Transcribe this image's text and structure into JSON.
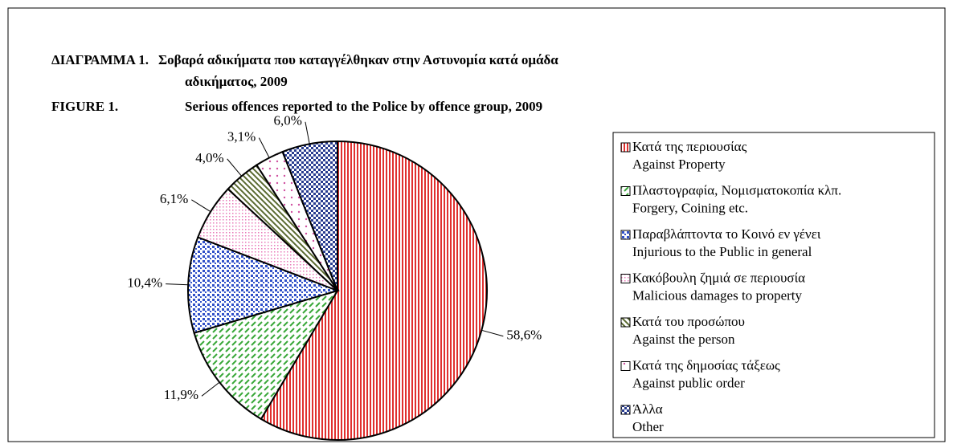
{
  "chart_data": {
    "type": "pie",
    "title_gr": [
      "ΔΙΑΓΡΑΜΜΑ 1.",
      "Σοβαρά αδικήματα που καταγγέλθηκαν στην Αστυνομία κατά ομάδα",
      "αδικήματος, 2009"
    ],
    "figure_label": "FIGURE 1.",
    "title_en": "Serious offences reported to the Police by offence group, 2009",
    "categories": [
      "Κατά της περιουσίας",
      "Πλαστογραφία, Νομισματοκοπία κλπ.",
      "Παραβλάπτοντα το Κοινό εν γένει",
      "Κακόβουλη ζημιά σε περιουσία",
      "Κατά του προσώπου",
      "Κατά της δημοσίας τάξεως",
      "Άλλα"
    ],
    "categories_en": [
      "Against Property",
      "Forgery, Coining etc.",
      "Injurious to the Public in general",
      "Malicious damages to property",
      "Against the person",
      "Against public order",
      "Other"
    ],
    "values": [
      58.6,
      11.9,
      10.4,
      6.1,
      4.0,
      3.1,
      6.0
    ],
    "value_labels": [
      "58,6%",
      "11,9%",
      "10,4%",
      "6,1%",
      "4,0%",
      "3,1%",
      "6,0%"
    ],
    "colors": [
      "#e0302f",
      "#3aa83a",
      "#3050c8",
      "#e878b8",
      "#5a6a30",
      "#d050a0",
      "#283c90"
    ],
    "patterns": [
      "vertical",
      "dashes",
      "grid-dots",
      "fine-dots",
      "diagonal",
      "sparse-dots",
      "checker"
    ]
  }
}
